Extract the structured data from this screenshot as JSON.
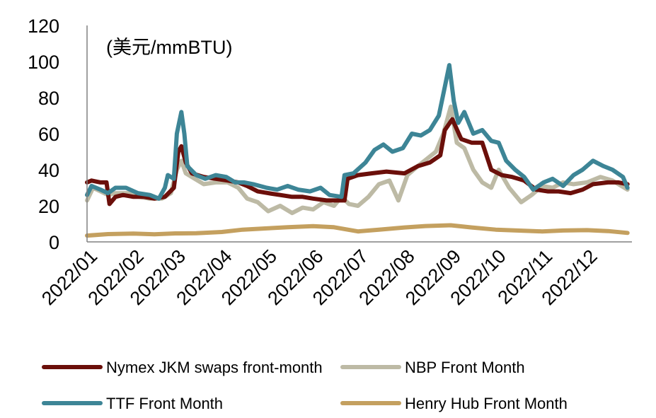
{
  "chart_data": {
    "type": "line",
    "unit_label": "(美元/mmBTU)",
    "ylim": [
      0,
      120
    ],
    "y_ticks": [
      "0",
      "20",
      "40",
      "60",
      "80",
      "100",
      "120"
    ],
    "x_ticks": [
      "2022/01",
      "2022/02",
      "2022/03",
      "2022/04",
      "2022/05",
      "2022/06",
      "2022/07",
      "2022/08",
      "2022/09",
      "2022/10",
      "2022/11",
      "2022/12"
    ],
    "grid": false,
    "legend_position": "bottom",
    "series": [
      {
        "name": "Nymex JKM swaps front-month",
        "color": "#6B0F0A",
        "points": [
          [
            "2022-01-01",
            33
          ],
          [
            "2022-01-04",
            34
          ],
          [
            "2022-01-10",
            33
          ],
          [
            "2022-01-14",
            33
          ],
          [
            "2022-01-16",
            21
          ],
          [
            "2022-01-20",
            25
          ],
          [
            "2022-01-25",
            26
          ],
          [
            "2022-02-01",
            25
          ],
          [
            "2022-02-08",
            25
          ],
          [
            "2022-02-15",
            24
          ],
          [
            "2022-02-22",
            25
          ],
          [
            "2022-02-28",
            30
          ],
          [
            "2022-03-03",
            50
          ],
          [
            "2022-03-05",
            53
          ],
          [
            "2022-03-08",
            44
          ],
          [
            "2022-03-12",
            38
          ],
          [
            "2022-03-20",
            36
          ],
          [
            "2022-03-28",
            35
          ],
          [
            "2022-04-05",
            34
          ],
          [
            "2022-04-12",
            33
          ],
          [
            "2022-04-18",
            31
          ],
          [
            "2022-04-25",
            28
          ],
          [
            "2022-05-02",
            27
          ],
          [
            "2022-05-10",
            26
          ],
          [
            "2022-05-18",
            25
          ],
          [
            "2022-05-25",
            25
          ],
          [
            "2022-06-01",
            24
          ],
          [
            "2022-06-10",
            23
          ],
          [
            "2022-06-17",
            23
          ],
          [
            "2022-06-22",
            23
          ],
          [
            "2022-06-24",
            35
          ],
          [
            "2022-07-01",
            37
          ],
          [
            "2022-07-10",
            38
          ],
          [
            "2022-07-20",
            39
          ],
          [
            "2022-08-01",
            38
          ],
          [
            "2022-08-10",
            42
          ],
          [
            "2022-08-18",
            44
          ],
          [
            "2022-08-25",
            48
          ],
          [
            "2022-08-28",
            62
          ],
          [
            "2022-09-02",
            68
          ],
          [
            "2022-09-08",
            57
          ],
          [
            "2022-09-15",
            55
          ],
          [
            "2022-09-22",
            55
          ],
          [
            "2022-09-28",
            40
          ],
          [
            "2022-10-05",
            37
          ],
          [
            "2022-10-12",
            36
          ],
          [
            "2022-10-20",
            34
          ],
          [
            "2022-10-28",
            29
          ],
          [
            "2022-11-05",
            28
          ],
          [
            "2022-11-12",
            28
          ],
          [
            "2022-11-20",
            27
          ],
          [
            "2022-11-28",
            29
          ],
          [
            "2022-12-05",
            32
          ],
          [
            "2022-12-15",
            33
          ],
          [
            "2022-12-22",
            33
          ],
          [
            "2022-12-28",
            32
          ]
        ]
      },
      {
        "name": "NBP Front Month",
        "color": "#BDBAA5",
        "points": [
          [
            "2022-01-01",
            23
          ],
          [
            "2022-01-05",
            30
          ],
          [
            "2022-01-10",
            28
          ],
          [
            "2022-01-15",
            26
          ],
          [
            "2022-01-20",
            27
          ],
          [
            "2022-01-28",
            27
          ],
          [
            "2022-02-05",
            25
          ],
          [
            "2022-02-12",
            24
          ],
          [
            "2022-02-20",
            24
          ],
          [
            "2022-02-26",
            27
          ],
          [
            "2022-03-02",
            40
          ],
          [
            "2022-03-05",
            45
          ],
          [
            "2022-03-08",
            38
          ],
          [
            "2022-03-14",
            35
          ],
          [
            "2022-03-20",
            32
          ],
          [
            "2022-03-28",
            33
          ],
          [
            "2022-04-05",
            33
          ],
          [
            "2022-04-12",
            30
          ],
          [
            "2022-04-18",
            24
          ],
          [
            "2022-04-25",
            22
          ],
          [
            "2022-05-02",
            17
          ],
          [
            "2022-05-10",
            20
          ],
          [
            "2022-05-18",
            16
          ],
          [
            "2022-05-25",
            19
          ],
          [
            "2022-06-01",
            18
          ],
          [
            "2022-06-08",
            22
          ],
          [
            "2022-06-15",
            20
          ],
          [
            "2022-06-20",
            25
          ],
          [
            "2022-06-25",
            21
          ],
          [
            "2022-07-01",
            20
          ],
          [
            "2022-07-08",
            25
          ],
          [
            "2022-07-15",
            32
          ],
          [
            "2022-07-22",
            34
          ],
          [
            "2022-07-28",
            23
          ],
          [
            "2022-08-03",
            37
          ],
          [
            "2022-08-10",
            42
          ],
          [
            "2022-08-16",
            46
          ],
          [
            "2022-08-22",
            50
          ],
          [
            "2022-08-27",
            60
          ],
          [
            "2022-09-01",
            75
          ],
          [
            "2022-09-05",
            55
          ],
          [
            "2022-09-10",
            52
          ],
          [
            "2022-09-16",
            40
          ],
          [
            "2022-09-22",
            33
          ],
          [
            "2022-09-28",
            30
          ],
          [
            "2022-10-03",
            40
          ],
          [
            "2022-10-10",
            30
          ],
          [
            "2022-10-18",
            22
          ],
          [
            "2022-10-25",
            26
          ],
          [
            "2022-11-01",
            31
          ],
          [
            "2022-11-08",
            30
          ],
          [
            "2022-11-15",
            33
          ],
          [
            "2022-11-22",
            32
          ],
          [
            "2022-12-01",
            33
          ],
          [
            "2022-12-10",
            36
          ],
          [
            "2022-12-18",
            34
          ],
          [
            "2022-12-28",
            29
          ]
        ]
      },
      {
        "name": "TTF Front Month",
        "color": "#3D8596",
        "points": [
          [
            "2022-01-01",
            26
          ],
          [
            "2022-01-04",
            31
          ],
          [
            "2022-01-10",
            29
          ],
          [
            "2022-01-15",
            27
          ],
          [
            "2022-01-20",
            30
          ],
          [
            "2022-01-27",
            30
          ],
          [
            "2022-02-04",
            27
          ],
          [
            "2022-02-12",
            26
          ],
          [
            "2022-02-18",
            24
          ],
          [
            "2022-02-22",
            30
          ],
          [
            "2022-02-24",
            37
          ],
          [
            "2022-02-28",
            35
          ],
          [
            "2022-03-02",
            60
          ],
          [
            "2022-03-05",
            72
          ],
          [
            "2022-03-07",
            60
          ],
          [
            "2022-03-09",
            42
          ],
          [
            "2022-03-15",
            37
          ],
          [
            "2022-03-21",
            35
          ],
          [
            "2022-03-28",
            37
          ],
          [
            "2022-04-04",
            36
          ],
          [
            "2022-04-10",
            33
          ],
          [
            "2022-04-16",
            33
          ],
          [
            "2022-04-22",
            32
          ],
          [
            "2022-05-01",
            30
          ],
          [
            "2022-05-08",
            29
          ],
          [
            "2022-05-15",
            31
          ],
          [
            "2022-05-22",
            29
          ],
          [
            "2022-05-30",
            28
          ],
          [
            "2022-06-06",
            30
          ],
          [
            "2022-06-12",
            26
          ],
          [
            "2022-06-20",
            25
          ],
          [
            "2022-06-22",
            37
          ],
          [
            "2022-06-28",
            38
          ],
          [
            "2022-07-06",
            44
          ],
          [
            "2022-07-12",
            51
          ],
          [
            "2022-07-18",
            54
          ],
          [
            "2022-07-24",
            50
          ],
          [
            "2022-07-31",
            52
          ],
          [
            "2022-08-06",
            60
          ],
          [
            "2022-08-12",
            59
          ],
          [
            "2022-08-18",
            62
          ],
          [
            "2022-08-24",
            70
          ],
          [
            "2022-08-28",
            86
          ],
          [
            "2022-08-31",
            98
          ],
          [
            "2022-09-03",
            78
          ],
          [
            "2022-09-06",
            66
          ],
          [
            "2022-09-10",
            72
          ],
          [
            "2022-09-16",
            60
          ],
          [
            "2022-09-22",
            62
          ],
          [
            "2022-09-28",
            56
          ],
          [
            "2022-10-03",
            55
          ],
          [
            "2022-10-08",
            45
          ],
          [
            "2022-10-14",
            40
          ],
          [
            "2022-10-20",
            36
          ],
          [
            "2022-10-26",
            29
          ],
          [
            "2022-11-02",
            33
          ],
          [
            "2022-11-08",
            35
          ],
          [
            "2022-11-15",
            31
          ],
          [
            "2022-11-22",
            37
          ],
          [
            "2022-11-28",
            40
          ],
          [
            "2022-12-05",
            45
          ],
          [
            "2022-12-12",
            42
          ],
          [
            "2022-12-18",
            40
          ],
          [
            "2022-12-25",
            36
          ],
          [
            "2022-12-28",
            30
          ]
        ]
      },
      {
        "name": "Henry Hub Front Month",
        "color": "#C4A05F",
        "points": [
          [
            "2022-01-01",
            3.5
          ],
          [
            "2022-01-15",
            4.3
          ],
          [
            "2022-02-01",
            4.6
          ],
          [
            "2022-02-15",
            4.2
          ],
          [
            "2022-03-01",
            4.7
          ],
          [
            "2022-03-15",
            4.8
          ],
          [
            "2022-04-01",
            5.5
          ],
          [
            "2022-04-15",
            6.8
          ],
          [
            "2022-05-01",
            7.5
          ],
          [
            "2022-05-15",
            8.1
          ],
          [
            "2022-06-01",
            8.7
          ],
          [
            "2022-06-15",
            8.1
          ],
          [
            "2022-07-01",
            5.8
          ],
          [
            "2022-07-15",
            6.8
          ],
          [
            "2022-08-01",
            8.0
          ],
          [
            "2022-08-15",
            8.8
          ],
          [
            "2022-09-01",
            9.2
          ],
          [
            "2022-09-15",
            8.0
          ],
          [
            "2022-10-01",
            6.8
          ],
          [
            "2022-10-15",
            6.3
          ],
          [
            "2022-11-01",
            5.8
          ],
          [
            "2022-11-15",
            6.3
          ],
          [
            "2022-12-01",
            6.5
          ],
          [
            "2022-12-15",
            6.0
          ],
          [
            "2022-12-28",
            5.0
          ]
        ]
      }
    ]
  }
}
